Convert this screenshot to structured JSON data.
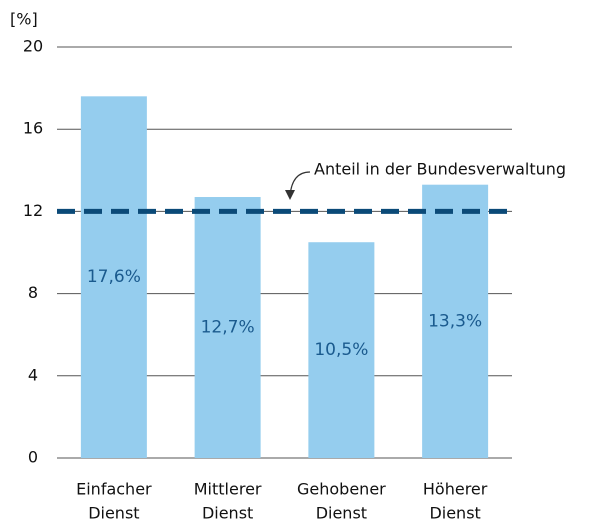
{
  "chart_data": {
    "type": "bar",
    "y_axis_label": "[%]",
    "categories": [
      [
        "Einfacher",
        "Dienst"
      ],
      [
        "Mittlerer",
        "Dienst"
      ],
      [
        "Gehobener",
        "Dienst"
      ],
      [
        "Höherer",
        "Dienst"
      ]
    ],
    "values": [
      17.6,
      12.7,
      10.5,
      13.3
    ],
    "value_labels": [
      "17,6%",
      "12,7%",
      "10,5%",
      "13,3%"
    ],
    "color": "#95cdee",
    "label_color": "#1a5a8e",
    "ylim": [
      0,
      20
    ],
    "yticks": [
      0,
      4,
      8,
      12,
      16,
      20
    ],
    "grid": true,
    "reference_line": {
      "value": 12,
      "label": "Anteil in der Bundesverwaltung",
      "color": "#0b4a78"
    }
  }
}
